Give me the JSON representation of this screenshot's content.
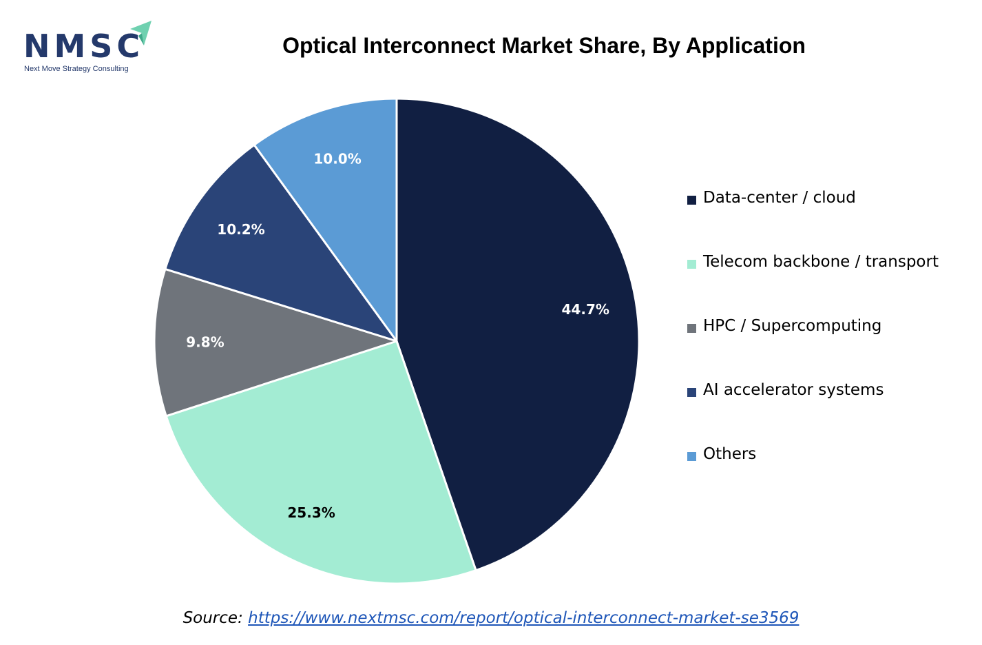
{
  "logo": {
    "letters": "NMSC",
    "tagline": "Next Move Strategy Consulting"
  },
  "colors": {
    "brand": "#24396b",
    "accent": "#6fd1b0"
  },
  "chart_data": {
    "type": "pie",
    "title": "Optical Interconnect Market Share, By Application",
    "legend_position": "right",
    "start_angle_deg": 0,
    "direction": "clockwise",
    "slices": [
      {
        "label": "Data-center / cloud",
        "value": 44.7,
        "data_label": "44.7%",
        "color": "#111f42",
        "label_color": "#ffffff"
      },
      {
        "label": "Telecom backbone / transport",
        "value": 25.3,
        "data_label": "25.3%",
        "color": "#a3ecd3",
        "label_color": "#000000"
      },
      {
        "label": "HPC / Supercomputing",
        "value": 9.8,
        "data_label": "9.8%",
        "color": "#6f747b",
        "label_color": "#ffffff"
      },
      {
        "label": "AI accelerator systems",
        "value": 10.2,
        "data_label": "10.2%",
        "color": "#2a4478",
        "label_color": "#ffffff"
      },
      {
        "label": "Others",
        "value": 10.0,
        "data_label": "10.0%",
        "color": "#5b9bd5",
        "label_color": "#ffffff"
      }
    ]
  },
  "source": {
    "prefix": "Source: ",
    "link_text": "https://www.nextmsc.com/report/optical-interconnect-market-se3569"
  }
}
